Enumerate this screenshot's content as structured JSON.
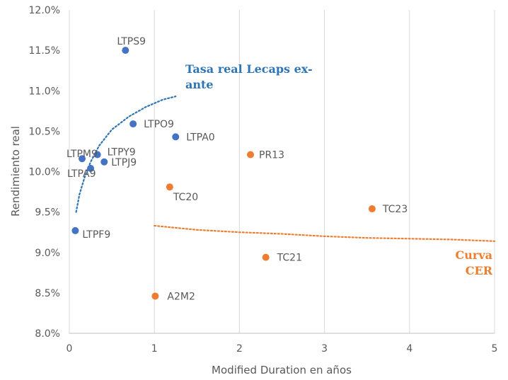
{
  "chart_data": {
    "type": "scatter",
    "title": "",
    "xlabel": "Modified Duration en años",
    "ylabel": "Rendimiento real",
    "xlim": [
      0,
      5
    ],
    "ylim": [
      8.0,
      12.0
    ],
    "x_ticks": [
      0,
      1,
      2,
      3,
      4,
      5
    ],
    "y_ticks": [
      8.0,
      8.5,
      9.0,
      9.5,
      10.0,
      10.5,
      11.0,
      11.5,
      12.0
    ],
    "y_tick_labels": [
      "8.0%",
      "8.5%",
      "9.0%",
      "9.5%",
      "10.0%",
      "10.5%",
      "11.0%",
      "11.5%",
      "12.0%"
    ],
    "x_tick_labels": [
      "0",
      "1",
      "2",
      "3",
      "4",
      "5"
    ],
    "grid": "vertical",
    "colors": {
      "lecaps": "#4472C4",
      "cer": "#ED7D31",
      "lecaps_curve": "#2E75B6",
      "cer_curve": "#ED7D31",
      "grid": "#D9D9D9",
      "text": "#595959"
    },
    "series": [
      {
        "key": "lecaps",
        "points": [
          {
            "label": "LTPS9",
            "x": 0.66,
            "y": 11.5
          },
          {
            "label": "LTPO9",
            "x": 0.75,
            "y": 10.59
          },
          {
            "label": "LTPA0",
            "x": 1.25,
            "y": 10.43
          },
          {
            "label": "LTPY9",
            "x": 0.33,
            "y": 10.21
          },
          {
            "label": "LTPM9",
            "x": 0.15,
            "y": 10.16
          },
          {
            "label": "LTPJ9",
            "x": 0.41,
            "y": 10.12
          },
          {
            "label": "LTPA9",
            "x": 0.25,
            "y": 10.04
          },
          {
            "label": "LTPF9",
            "x": 0.07,
            "y": 9.27
          }
        ]
      },
      {
        "key": "cer",
        "points": [
          {
            "label": "PR13",
            "x": 2.13,
            "y": 10.21
          },
          {
            "label": "TC20",
            "x": 1.18,
            "y": 9.81
          },
          {
            "label": "TC23",
            "x": 3.56,
            "y": 9.54
          },
          {
            "label": "TC21",
            "x": 2.31,
            "y": 8.94
          },
          {
            "label": "A2M2",
            "x": 1.01,
            "y": 8.46
          }
        ]
      }
    ],
    "curves": [
      {
        "key": "lecaps_curve",
        "points": [
          [
            0.08,
            9.5
          ],
          [
            0.12,
            9.72
          ],
          [
            0.18,
            9.93
          ],
          [
            0.25,
            10.12
          ],
          [
            0.35,
            10.32
          ],
          [
            0.5,
            10.52
          ],
          [
            0.7,
            10.68
          ],
          [
            0.9,
            10.8
          ],
          [
            1.1,
            10.89
          ],
          [
            1.25,
            10.93
          ]
        ]
      },
      {
        "key": "cer_curve",
        "points": [
          [
            1.0,
            9.33
          ],
          [
            1.5,
            9.28
          ],
          [
            2.0,
            9.25
          ],
          [
            2.5,
            9.23
          ],
          [
            3.0,
            9.2
          ],
          [
            3.5,
            9.18
          ],
          [
            4.0,
            9.17
          ],
          [
            4.5,
            9.16
          ],
          [
            5.0,
            9.14
          ]
        ]
      }
    ],
    "annotations": {
      "lecaps_line1": "Tasa real Lecaps ex-",
      "lecaps_line2": "ante",
      "cer_line1": "Curva",
      "cer_line2": "CER"
    }
  }
}
